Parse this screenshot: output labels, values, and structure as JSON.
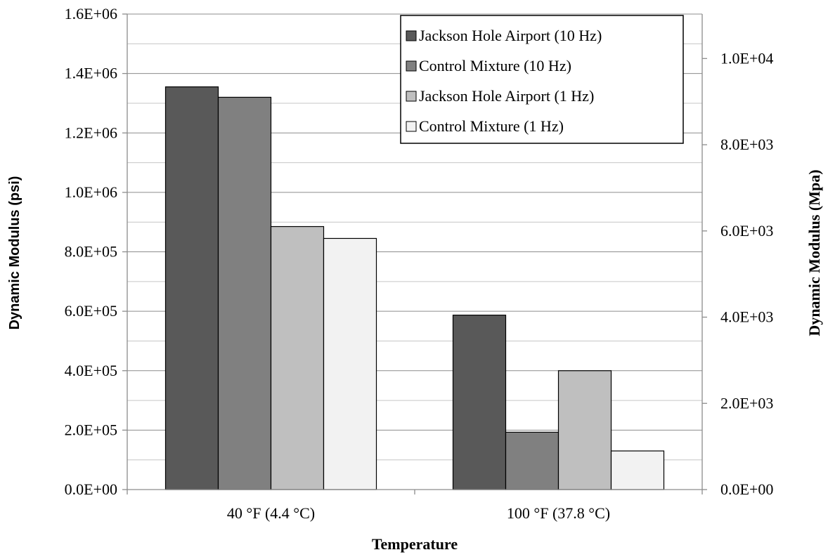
{
  "chart_data": {
    "type": "bar",
    "title": "",
    "xlabel": "Temperature",
    "ylabel": "Dynamic Modulus (psi)",
    "ylabel_right": "Dynamic Modulus (Mpa)",
    "categories": [
      "40 °F (4.4 °C)",
      "100 °F (37.8 °C)"
    ],
    "ylim": [
      0,
      1600000
    ],
    "ylim_right": [
      0,
      11031.6
    ],
    "yticks": [
      "0.0E+00",
      "2.0E+05",
      "4.0E+05",
      "6.0E+05",
      "8.0E+05",
      "1.0E+06",
      "1.2E+06",
      "1.4E+06",
      "1.6E+06"
    ],
    "yticks_right": [
      "0.0E+00",
      "2.0E+03",
      "4.0E+03",
      "6.0E+03",
      "8.0E+03",
      "1.0E+04"
    ],
    "ytick_values_right": [
      0,
      2000,
      4000,
      6000,
      8000,
      10000
    ],
    "grid": true,
    "legend_position": "top-right",
    "series": [
      {
        "name": "Jackson Hole Airport (10 Hz)",
        "color": "#595959",
        "values": [
          1355000,
          587000
        ]
      },
      {
        "name": "Control Mixture (10 Hz)",
        "color": "#808080",
        "values": [
          1320000,
          193000
        ]
      },
      {
        "name": "Jackson Hole Airport (1 Hz)",
        "color": "#bfbfbf",
        "values": [
          885000,
          400000
        ]
      },
      {
        "name": "Control Mixture (1 Hz)",
        "color": "#f2f2f2",
        "values": [
          845000,
          130000
        ]
      }
    ]
  }
}
